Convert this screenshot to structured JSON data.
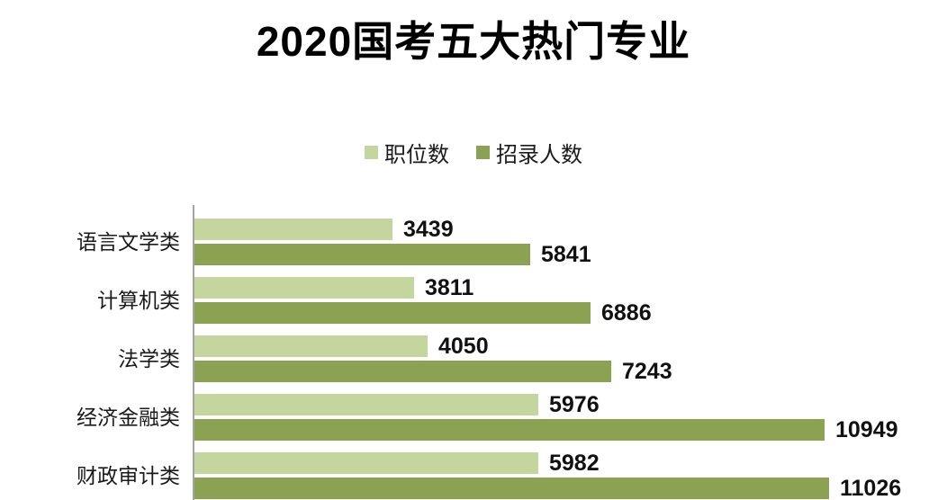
{
  "title": "2020国考五大热门专业",
  "legend": [
    {
      "label": "职位数",
      "color": "#C4D69E"
    },
    {
      "label": "招录人数",
      "color": "#8CA253"
    }
  ],
  "colors": {
    "axis": "#A3A3A3",
    "value_text": "#111111",
    "background": "#FFFFFF"
  },
  "chart_data": {
    "type": "bar",
    "orientation": "horizontal",
    "title": "2020国考五大热门专业",
    "categories": [
      "语言文学类",
      "计算机类",
      "法学类",
      "经济金融类",
      "财政审计类"
    ],
    "series": [
      {
        "name": "职位数",
        "color": "#C4D69E",
        "values": [
          3439,
          3811,
          4050,
          5976,
          5982
        ]
      },
      {
        "name": "招录人数",
        "color": "#8CA253",
        "values": [
          5841,
          6886,
          7243,
          10949,
          11026
        ]
      }
    ],
    "value_labels": true,
    "xlim": [
      0,
      13000
    ],
    "grid": false,
    "legend_position": "top-center"
  }
}
